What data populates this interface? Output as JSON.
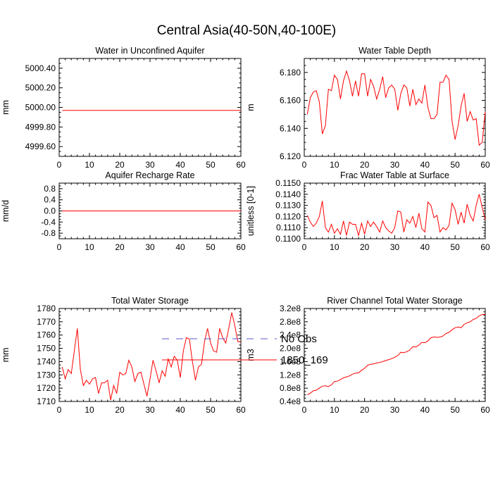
{
  "figure": {
    "title": "Central Asia(40-50N,40-100E)"
  },
  "legend": {
    "items": [
      {
        "label": "No Obs",
        "color": "#5a5acd",
        "dash": true
      },
      {
        "label": "1850_169",
        "color": "#ff0000",
        "dash": false
      }
    ]
  },
  "chart_data": [
    {
      "type": "line",
      "title": "Water in Unconfined Aquifer",
      "xlabel": "",
      "ylabel": "mm",
      "xlim": [
        0,
        60
      ],
      "ylim": [
        4999.5,
        5000.5
      ],
      "xticks": [
        0,
        10,
        20,
        30,
        40,
        50,
        60
      ],
      "yticks": [
        4999.6,
        4999.8,
        5000.0,
        5000.2,
        5000.4
      ],
      "ytick_labels": [
        "4999.60",
        "4999.80",
        "5000.00",
        "5000.20",
        "5000.40"
      ],
      "series": [
        {
          "name": "1850_169",
          "color": "#ff0000",
          "x": [
            1,
            60
          ],
          "values": [
            4999.97,
            4999.97
          ]
        }
      ]
    },
    {
      "type": "line",
      "title": "Water Table Depth",
      "xlabel": "",
      "ylabel": "m",
      "xlim": [
        0,
        60
      ],
      "ylim": [
        6.12,
        6.19
      ],
      "xticks": [
        0,
        10,
        20,
        30,
        40,
        50,
        60
      ],
      "yticks": [
        6.12,
        6.14,
        6.16,
        6.18
      ],
      "ytick_labels": [
        "6.120",
        "6.140",
        "6.160",
        "6.180"
      ],
      "series": [
        {
          "name": "1850_169",
          "color": "#ff0000",
          "x": [
            1,
            2,
            3,
            4,
            5,
            6,
            7,
            8,
            9,
            10,
            11,
            12,
            13,
            14,
            15,
            16,
            17,
            18,
            19,
            20,
            21,
            22,
            23,
            24,
            25,
            26,
            27,
            28,
            29,
            30,
            31,
            32,
            33,
            34,
            35,
            36,
            37,
            38,
            39,
            40,
            41,
            42,
            43,
            44,
            45,
            46,
            47,
            48,
            49,
            50,
            51,
            52,
            53,
            54,
            55,
            56,
            57,
            58,
            59,
            60
          ],
          "values": [
            6.15,
            6.162,
            6.166,
            6.167,
            6.159,
            6.136,
            6.142,
            6.168,
            6.167,
            6.178,
            6.175,
            6.161,
            6.174,
            6.181,
            6.174,
            6.163,
            6.174,
            6.163,
            6.179,
            6.179,
            6.163,
            6.175,
            6.17,
            6.161,
            6.168,
            6.177,
            6.162,
            6.169,
            6.171,
            6.168,
            6.153,
            6.165,
            6.171,
            6.169,
            6.156,
            6.168,
            6.157,
            6.161,
            6.158,
            6.171,
            6.155,
            6.147,
            6.147,
            6.15,
            6.173,
            6.173,
            6.178,
            6.175,
            6.145,
            6.132,
            6.142,
            6.156,
            6.165,
            6.145,
            6.152,
            6.146,
            6.147,
            6.128,
            6.13,
            6.152
          ]
        }
      ]
    },
    {
      "type": "line",
      "title": "Aquifer Recharge Rate",
      "xlabel": "",
      "ylabel": "mm/d",
      "xlim": [
        0,
        60
      ],
      "ylim": [
        -1.0,
        1.0
      ],
      "xticks": [
        0,
        10,
        20,
        30,
        40,
        50,
        60
      ],
      "yticks": [
        -0.8,
        -0.4,
        0.0,
        0.4,
        0.8
      ],
      "ytick_labels": [
        "-0.8",
        "-0.4",
        "0.0",
        "0.4",
        "0.8"
      ],
      "series": [
        {
          "name": "1850_169",
          "color": "#ff0000",
          "x": [
            1,
            60
          ],
          "values": [
            0.0,
            0.0
          ]
        }
      ]
    },
    {
      "type": "line",
      "title": "Frac Water Table at Surface",
      "xlabel": "",
      "ylabel": "unitless [0-1]",
      "xlim": [
        0,
        60
      ],
      "ylim": [
        0.11,
        0.115
      ],
      "xticks": [
        0,
        10,
        20,
        30,
        40,
        50,
        60
      ],
      "yticks": [
        0.11,
        0.111,
        0.112,
        0.113,
        0.114,
        0.115
      ],
      "ytick_labels": [
        "0.1100",
        "0.1110",
        "0.1120",
        "0.1130",
        "0.1140",
        "0.1150"
      ],
      "series": [
        {
          "name": "1850_169",
          "color": "#ff0000",
          "x": [
            1,
            2,
            3,
            4,
            5,
            6,
            7,
            8,
            9,
            10,
            11,
            12,
            13,
            14,
            15,
            16,
            17,
            18,
            19,
            20,
            21,
            22,
            23,
            24,
            25,
            26,
            27,
            28,
            29,
            30,
            31,
            32,
            33,
            34,
            35,
            36,
            37,
            38,
            39,
            40,
            41,
            42,
            43,
            44,
            45,
            46,
            47,
            48,
            49,
            50,
            51,
            52,
            53,
            54,
            55,
            56,
            57,
            58,
            59,
            60
          ],
          "values": [
            0.1121,
            0.1115,
            0.1111,
            0.1114,
            0.112,
            0.1134,
            0.111,
            0.1106,
            0.1113,
            0.1105,
            0.1109,
            0.1104,
            0.1116,
            0.1103,
            0.1115,
            0.1113,
            0.1113,
            0.1103,
            0.1114,
            0.1104,
            0.1116,
            0.1111,
            0.1115,
            0.1111,
            0.1106,
            0.1116,
            0.111,
            0.1107,
            0.1105,
            0.111,
            0.1125,
            0.1124,
            0.1106,
            0.1117,
            0.1114,
            0.112,
            0.111,
            0.1123,
            0.1109,
            0.1106,
            0.1133,
            0.113,
            0.1119,
            0.1121,
            0.1106,
            0.111,
            0.1108,
            0.1112,
            0.1132,
            0.1126,
            0.1113,
            0.1124,
            0.1114,
            0.1131,
            0.1121,
            0.1116,
            0.113,
            0.114,
            0.1128,
            0.1117
          ]
        }
      ]
    },
    {
      "type": "line",
      "title": "Total Water Storage",
      "xlabel": "",
      "ylabel": "mm",
      "xlim": [
        0,
        60
      ],
      "ylim": [
        1710,
        1780
      ],
      "xticks": [
        0,
        10,
        20,
        30,
        40,
        50,
        60
      ],
      "yticks": [
        1710,
        1720,
        1730,
        1740,
        1750,
        1760,
        1770,
        1780
      ],
      "ytick_labels": [
        "1710",
        "1720",
        "1730",
        "1740",
        "1750",
        "1760",
        "1770",
        "1780"
      ],
      "series": [
        {
          "name": "1850_169",
          "color": "#ff0000",
          "x": [
            1,
            2,
            3,
            4,
            5,
            6,
            7,
            8,
            9,
            10,
            11,
            12,
            13,
            14,
            15,
            16,
            17,
            18,
            19,
            20,
            21,
            22,
            23,
            24,
            25,
            26,
            27,
            28,
            29,
            30,
            31,
            32,
            33,
            34,
            35,
            36,
            37,
            38,
            39,
            40,
            41,
            42,
            43,
            44,
            45,
            46,
            47,
            48,
            49,
            50,
            51,
            52,
            53,
            54,
            55,
            56,
            57,
            58,
            59,
            60
          ],
          "values": [
            1736,
            1727,
            1734,
            1731,
            1748,
            1765,
            1734,
            1722,
            1726,
            1723,
            1727,
            1728,
            1716,
            1724,
            1724,
            1726,
            1711,
            1722,
            1716,
            1732,
            1730,
            1731,
            1741,
            1736,
            1725,
            1731,
            1732,
            1723,
            1714,
            1727,
            1741,
            1733,
            1724,
            1733,
            1729,
            1742,
            1736,
            1744,
            1741,
            1728,
            1748,
            1758,
            1757,
            1740,
            1726,
            1736,
            1738,
            1755,
            1765,
            1754,
            1748,
            1747,
            1765,
            1758,
            1754,
            1765,
            1777,
            1767,
            1755,
            1755
          ]
        }
      ]
    },
    {
      "type": "line",
      "title": "River Channel Total Water Storage",
      "xlabel": "",
      "ylabel": "m3",
      "xlim": [
        0,
        60
      ],
      "ylim": [
        40000000,
        320000000
      ],
      "xticks": [
        0,
        10,
        20,
        30,
        40,
        50,
        60
      ],
      "yticks": [
        40000000,
        80000000,
        120000000,
        160000000,
        200000000,
        240000000,
        280000000,
        320000000
      ],
      "ytick_labels": [
        "0.4e8",
        "0.8e8",
        "1.2e8",
        "1.6e8",
        "2.0e8",
        "2.4e8",
        "2.8e8",
        "3.2e8"
      ],
      "series": [
        {
          "name": "1850_169",
          "color": "#ff0000",
          "x": [
            1,
            2,
            3,
            4,
            5,
            6,
            7,
            8,
            9,
            10,
            11,
            12,
            13,
            14,
            15,
            16,
            17,
            18,
            19,
            20,
            21,
            22,
            23,
            24,
            25,
            26,
            27,
            28,
            29,
            30,
            31,
            32,
            33,
            34,
            35,
            36,
            37,
            38,
            39,
            40,
            41,
            42,
            43,
            44,
            45,
            46,
            47,
            48,
            49,
            50,
            51,
            52,
            53,
            54,
            55,
            56,
            57,
            58,
            59,
            60
          ],
          "values": [
            60000000,
            65000000,
            72000000,
            74000000,
            80000000,
            86000000,
            87000000,
            85000000,
            90000000,
            100000000,
            101000000,
            106000000,
            111000000,
            114000000,
            117000000,
            122000000,
            125000000,
            126000000,
            134000000,
            140000000,
            149000000,
            152000000,
            153000000,
            156000000,
            157000000,
            160000000,
            163000000,
            166000000,
            169000000,
            173000000,
            178000000,
            188000000,
            187000000,
            190000000,
            195000000,
            205000000,
            204000000,
            210000000,
            218000000,
            217000000,
            222000000,
            232000000,
            234000000,
            233000000,
            234000000,
            237000000,
            245000000,
            248000000,
            256000000,
            262000000,
            264000000,
            262000000,
            272000000,
            277000000,
            280000000,
            287000000,
            290000000,
            298000000,
            302000000,
            302000000
          ]
        }
      ]
    }
  ]
}
